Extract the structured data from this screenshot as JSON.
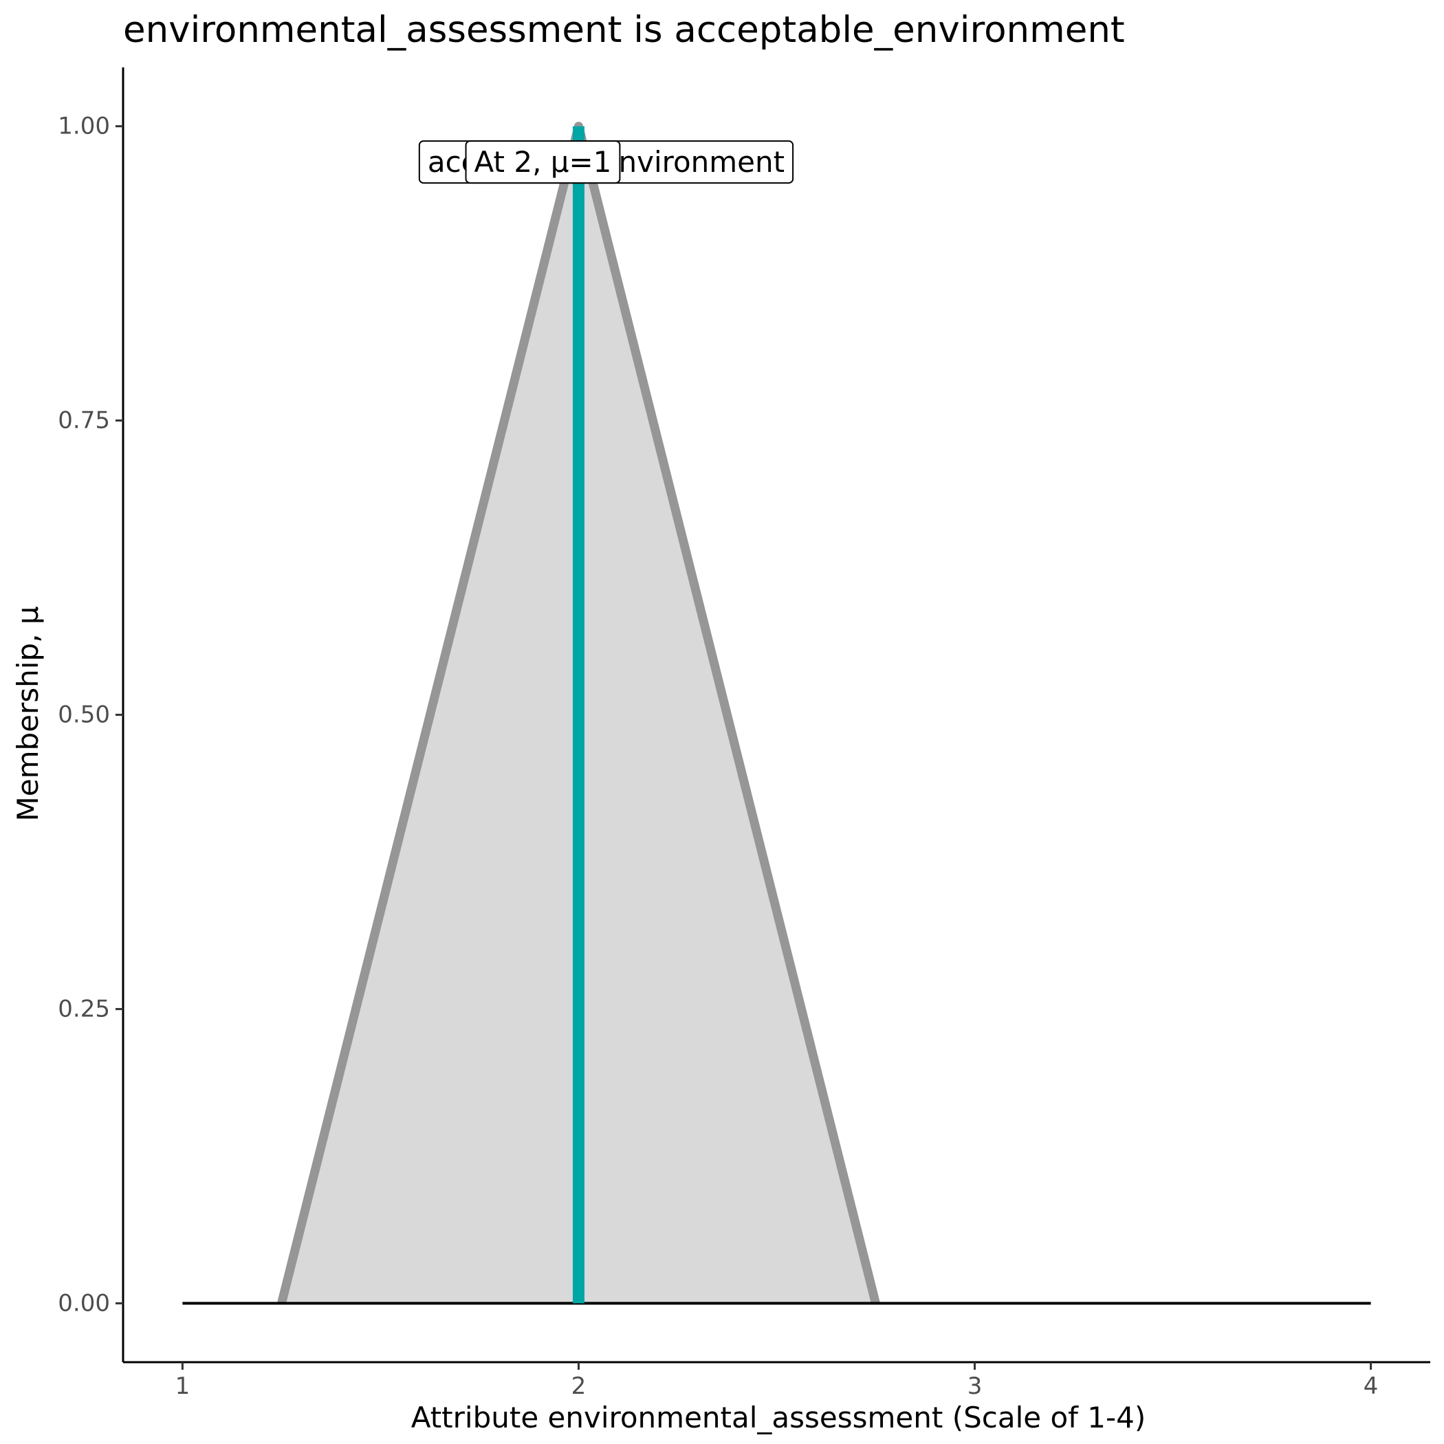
{
  "chart_data": {
    "type": "area",
    "title": "environmental_assessment is acceptable_environment",
    "xlabel": "Attribute environmental_assessment (Scale of 1-4)",
    "ylabel": "Membership, μ",
    "xlim": [
      0.85,
      4.15
    ],
    "ylim": [
      -0.05,
      1.05
    ],
    "x_ticks": [
      1,
      2,
      3,
      4
    ],
    "x_tick_labels": [
      "1",
      "2",
      "3",
      "4"
    ],
    "y_ticks": [
      0,
      0.25,
      0.5,
      0.75,
      1
    ],
    "y_tick_labels": [
      "0.00",
      "0.25",
      "0.50",
      "0.75",
      "1.00"
    ],
    "grid": false,
    "baseline": {
      "x": [
        1,
        4
      ],
      "y": 0
    },
    "membership_function": {
      "label": "acceptable_environment",
      "x": [
        1.25,
        2,
        2.75
      ],
      "y": [
        0,
        1,
        0
      ],
      "fill_color": "#d9d9d9",
      "line_color": "#969696"
    },
    "evaluation": {
      "x": 2,
      "mu": 1,
      "label": "At 2, μ=1",
      "color": "#00a5a5"
    }
  }
}
